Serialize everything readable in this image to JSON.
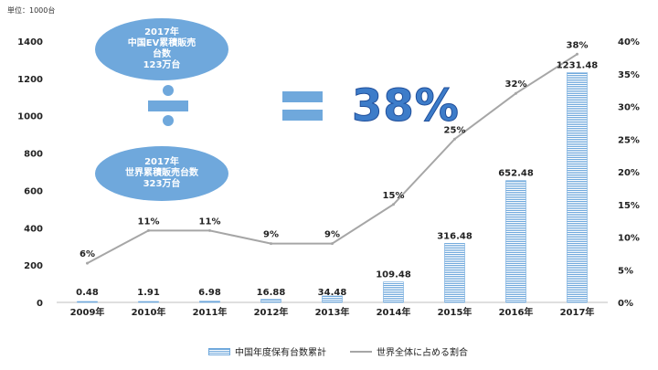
{
  "unit_label": "単位：1000台",
  "callouts": {
    "china": {
      "line1": "2017年",
      "line2": "中国EV累積販売",
      "line3": "台数",
      "line4": "123万台"
    },
    "world": {
      "line1": "2017年",
      "line2": "世界累積販売台数",
      "line3": "323万台"
    },
    "result": "38%"
  },
  "colors": {
    "bar": "#6fa8dc",
    "line": "#a6a6a6",
    "ellipse": "#6fa8dc",
    "result_text": "#3d7cc9"
  },
  "chart_data": {
    "type": "bar+line",
    "categories": [
      "2009年",
      "2010年",
      "2011年",
      "2012年",
      "2013年",
      "2014年",
      "2015年",
      "2016年",
      "2017年"
    ],
    "series": [
      {
        "name": "中国年度保有台数累計",
        "type": "bar",
        "axis": "left",
        "values": [
          0.48,
          1.91,
          6.98,
          16.88,
          34.48,
          109.48,
          316.48,
          652.48,
          1231.48
        ],
        "labels": [
          "0.48",
          "1.91",
          "6.98",
          "16.88",
          "34.48",
          "109.48",
          "316.48",
          "652.48",
          "1231.48"
        ]
      },
      {
        "name": "世界全体に占める割合",
        "type": "line",
        "axis": "right",
        "values": [
          6,
          11,
          11,
          9,
          9,
          15,
          25,
          32,
          38
        ],
        "labels": [
          "6%",
          "11%",
          "11%",
          "9%",
          "9%",
          "15%",
          "25%",
          "32%",
          "38%"
        ]
      }
    ],
    "y_left": {
      "min": 0,
      "max": 1400,
      "ticks": [
        "0",
        "200",
        "400",
        "600",
        "800",
        "1000",
        "1200",
        "1400"
      ]
    },
    "y_right": {
      "min": 0,
      "max": 40,
      "ticks": [
        "0%",
        "5%",
        "10%",
        "15%",
        "20%",
        "25%",
        "30%",
        "35%",
        "40%"
      ]
    },
    "grid": false,
    "legend_position": "bottom"
  }
}
